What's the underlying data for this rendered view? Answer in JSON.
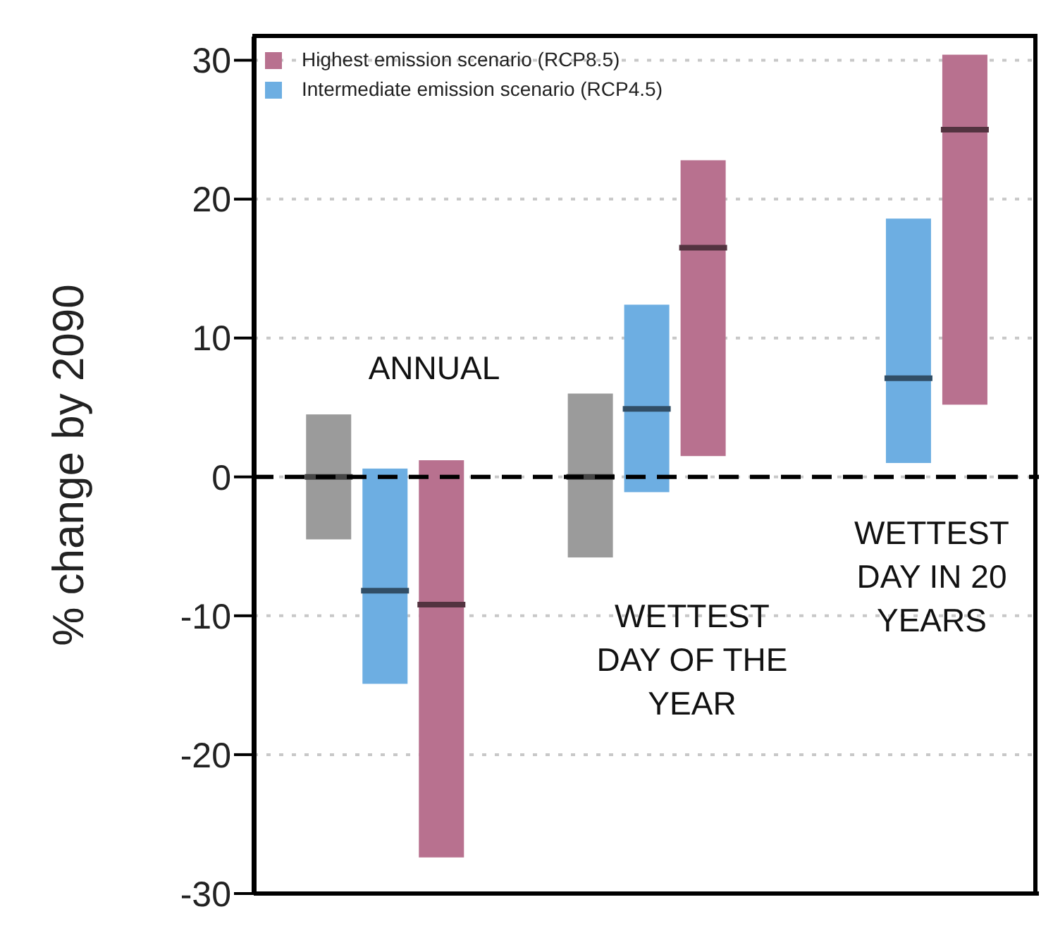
{
  "chart_data": {
    "type": "box",
    "ylabel": "% change by 2090",
    "categories": [
      null,
      null,
      null
    ],
    "series": [
      {
        "color": "#9b9b9b",
        "boxes": [
          {
            "low": -4.5,
            "q1": -4.5,
            "median": 0,
            "q3": 4.5,
            "high": 4.5
          },
          {
            "low": -5.8,
            "q1": -5.8,
            "median": 0,
            "q3": 6,
            "high": 6
          },
          null
        ]
      },
      {
        "name": "Intermediate emission scenario (RCP4.5)",
        "color": "#6daee2",
        "boxes": [
          {
            "low": -14.9,
            "q1": -14.9,
            "median": -8.2,
            "q3": 0.6,
            "high": 0.6
          },
          {
            "low": -1.1,
            "q1": -1.1,
            "median": 4.9,
            "q3": 12.4,
            "high": 12.4
          },
          {
            "low": 1,
            "q1": 1,
            "median": 7.1,
            "q3": 18.6,
            "high": 18.6
          }
        ]
      },
      {
        "name": "Highest emission scenario (RCP8.5)",
        "color": "#b8718f",
        "boxes": [
          {
            "low": -27.4,
            "q1": -27.4,
            "median": -9.2,
            "q3": 1.2,
            "high": 1.2
          },
          {
            "low": 1.5,
            "q1": 1.5,
            "median": 16.5,
            "q3": 22.8,
            "high": 22.8
          },
          {
            "low": 5.2,
            "q1": 5.2,
            "median": 25,
            "q3": 30.4,
            "high": 30.4
          }
        ]
      }
    ],
    "ylim": [
      -30,
      31.7
    ],
    "yticks": [
      -30,
      -20,
      -10,
      0,
      10,
      20,
      30
    ],
    "grid": "y",
    "tick_labels": "y",
    "legend": "top left",
    "ref_lines": [
      {
        "axis": "y",
        "value": 0,
        "color": "#000000",
        "line_style": "dashed"
      }
    ],
    "annotations": [
      "ANNUAL",
      "WETTEST DAY OF THE YEAR",
      "WETTEST DAY IN 20 YEARS"
    ]
  }
}
